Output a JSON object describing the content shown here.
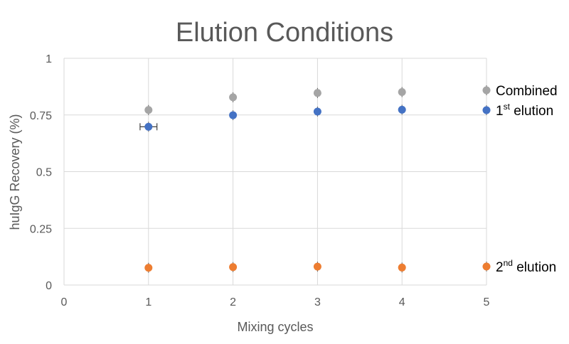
{
  "chart_data": {
    "type": "scatter",
    "title": "Elution Conditions",
    "xlabel": "Mixing cycles",
    "ylabel": "huIgG Recovery (%)",
    "xlim": [
      0,
      5
    ],
    "ylim": [
      0,
      1
    ],
    "x_ticks": [
      "0",
      "1",
      "2",
      "3",
      "4",
      "5"
    ],
    "y_ticks": [
      "0",
      "0.25",
      "0.5",
      "0.75",
      "1"
    ],
    "grid": true,
    "legend_placement": "right",
    "series": [
      {
        "key": "combined",
        "legend_main": "Combined",
        "legend_sup": "",
        "legend_rest": "",
        "color": "#a5a5a5",
        "x": [
          1,
          2,
          3,
          4
        ],
        "y": [
          0.772,
          0.828,
          0.847,
          0.851
        ],
        "xerr": [
          0,
          0,
          0,
          0
        ]
      },
      {
        "key": "first-elution",
        "legend_main": "1",
        "legend_sup": "st",
        "legend_rest": " elution",
        "color": "#4472c4",
        "x": [
          1,
          2,
          3,
          4
        ],
        "y": [
          0.698,
          0.749,
          0.765,
          0.773
        ],
        "xerr": [
          0.1,
          0,
          0,
          0
        ]
      },
      {
        "key": "second-elution",
        "legend_main": "2",
        "legend_sup": "nd",
        "legend_rest": " elution",
        "color": "#ed7d31",
        "x": [
          1,
          2,
          3,
          4
        ],
        "y": [
          0.076,
          0.079,
          0.081,
          0.077
        ],
        "xerr": [
          0,
          0,
          0,
          0
        ]
      }
    ]
  }
}
